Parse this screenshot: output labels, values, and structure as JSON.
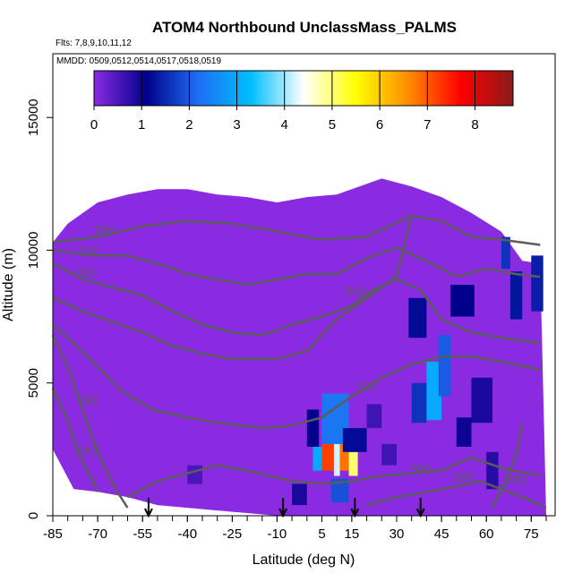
{
  "chart_data": {
    "type": "heatmap",
    "title": "ATOM4 Northbound UnclassMass_PALMS",
    "flights_text": "Flts: 7,8,9,10,11,12",
    "dates_text": "MMDD: 0509,0512,0514,0517,0518,0519",
    "xlabel": "Latitude (deg N)",
    "ylabel": "Altitude (m)",
    "xlim": [
      -85,
      83
    ],
    "ylim": [
      0,
      17400
    ],
    "x_ticks": [
      -85,
      -70,
      -55,
      -40,
      -25,
      -10,
      5,
      15,
      30,
      45,
      60,
      75
    ],
    "x_tick_labels": [
      "-85",
      "-70",
      "-55",
      "-40",
      "-25",
      "-10",
      "5",
      "15",
      "30",
      "45",
      "60",
      "75"
    ],
    "y_ticks": [
      0,
      5000,
      10000,
      15000
    ],
    "y_tick_labels": [
      "0",
      "5000",
      "10000",
      "15000"
    ],
    "colorbar": {
      "range": [
        0,
        8.8
      ],
      "ticks": [
        0,
        1,
        2,
        3,
        4,
        5,
        6,
        7,
        8
      ],
      "tick_labels": [
        "0",
        "1",
        "2",
        "3",
        "4",
        "5",
        "6",
        "7",
        "8"
      ],
      "colors": [
        "#8a2be2",
        "#00008b",
        "#1e6ff5",
        "#00bfff",
        "#ffffff",
        "#ffff00",
        "#ff8c00",
        "#ff0000",
        "#8b1a1a"
      ]
    },
    "background_color": "#8a2be2",
    "contour_color": "#5c5c5c",
    "coverage_profile": [
      [
        -85,
        10300
      ],
      [
        -80,
        11000
      ],
      [
        -70,
        11800
      ],
      [
        -60,
        12100
      ],
      [
        -50,
        12300
      ],
      [
        -40,
        12300
      ],
      [
        -30,
        12100
      ],
      [
        -20,
        12000
      ],
      [
        -10,
        11800
      ],
      [
        0,
        12000
      ],
      [
        10,
        12100
      ],
      [
        25,
        12700
      ],
      [
        35,
        12400
      ],
      [
        45,
        12000
      ],
      [
        55,
        11400
      ],
      [
        65,
        10700
      ],
      [
        72,
        9600
      ],
      [
        78,
        9500
      ]
    ],
    "coverage_bottom": [
      [
        -85,
        2500
      ],
      [
        -78,
        1000
      ],
      [
        -70,
        900
      ],
      [
        -60,
        700
      ],
      [
        -50,
        400
      ],
      [
        -40,
        300
      ],
      [
        -30,
        200
      ],
      [
        -20,
        100
      ],
      [
        -10,
        0
      ],
      [
        75,
        0
      ],
      [
        80,
        0
      ]
    ],
    "contours": [
      {
        "label": "350",
        "label_at": [
          -68,
          10600
        ],
        "points": [
          [
            -85,
            10300
          ],
          [
            -70,
            10500
          ],
          [
            -55,
            10900
          ],
          [
            -40,
            11100
          ],
          [
            -25,
            11000
          ],
          [
            -10,
            10700
          ],
          [
            5,
            10400
          ],
          [
            20,
            10500
          ],
          [
            35,
            11300
          ],
          [
            45,
            11100
          ],
          [
            55,
            10500
          ],
          [
            65,
            10400
          ],
          [
            78,
            10200
          ]
        ]
      },
      {
        "label": "330",
        "label_at": [
          -73,
          9800
        ],
        "points": [
          [
            -85,
            10000
          ],
          [
            -72,
            9800
          ],
          [
            -60,
            9800
          ],
          [
            -50,
            9500
          ],
          [
            -40,
            9100
          ],
          [
            -30,
            8900
          ],
          [
            -20,
            8700
          ],
          [
            -10,
            8900
          ],
          [
            0,
            9100
          ],
          [
            10,
            9100
          ],
          [
            20,
            9700
          ],
          [
            30,
            10100
          ],
          [
            40,
            9600
          ],
          [
            50,
            9000
          ],
          [
            60,
            9300
          ],
          [
            70,
            9100
          ],
          [
            78,
            9000
          ]
        ]
      },
      {
        "label": "320",
        "label_at": [
          -74,
          9000
        ],
        "points": [
          [
            -85,
            9500
          ],
          [
            -75,
            8900
          ],
          [
            -65,
            8600
          ],
          [
            -55,
            8300
          ],
          [
            -45,
            7700
          ],
          [
            -35,
            7200
          ],
          [
            -25,
            6900
          ],
          [
            -15,
            6800
          ],
          [
            -5,
            7200
          ],
          [
            5,
            7500
          ],
          [
            15,
            7900
          ],
          [
            22,
            8500
          ],
          [
            30,
            8900
          ],
          [
            38,
            8500
          ],
          [
            45,
            7400
          ],
          [
            55,
            6900
          ],
          [
            65,
            6700
          ],
          [
            78,
            6500
          ]
        ]
      },
      {
        "label": "340",
        "label_at": [
          16,
          8300
        ],
        "points": [
          [
            -85,
            8200
          ],
          [
            -75,
            7700
          ],
          [
            -65,
            7300
          ],
          [
            -55,
            6900
          ],
          [
            -45,
            6400
          ],
          [
            -35,
            6100
          ],
          [
            -25,
            5900
          ],
          [
            -10,
            5900
          ],
          [
            0,
            6200
          ],
          [
            10,
            7400
          ],
          [
            20,
            8200
          ],
          [
            30,
            9000
          ],
          [
            35,
            11300
          ]
        ]
      },
      {
        "label": "320",
        "label_at": [
          20,
          4700
        ],
        "points": [
          [
            -85,
            7200
          ],
          [
            -78,
            6500
          ],
          [
            -70,
            5600
          ],
          [
            -62,
            4700
          ],
          [
            -52,
            4000
          ],
          [
            -40,
            3700
          ],
          [
            -30,
            3500
          ],
          [
            -15,
            3300
          ],
          [
            -5,
            3400
          ],
          [
            5,
            3700
          ],
          [
            15,
            4500
          ],
          [
            25,
            5200
          ],
          [
            35,
            5700
          ],
          [
            45,
            6000
          ],
          [
            55,
            6000
          ],
          [
            65,
            5800
          ],
          [
            78,
            5500
          ]
        ]
      },
      {
        "label": "300",
        "label_at": [
          38,
          1600
        ],
        "points": [
          [
            -60,
            700
          ],
          [
            -50,
            1300
          ],
          [
            -40,
            1600
          ],
          [
            -30,
            1900
          ],
          [
            -20,
            1700
          ],
          [
            -5,
            1300
          ],
          [
            5,
            1200
          ],
          [
            15,
            1300
          ],
          [
            25,
            1500
          ],
          [
            35,
            1600
          ],
          [
            45,
            1700
          ],
          [
            55,
            2200
          ],
          [
            65,
            1800
          ],
          [
            78,
            1500
          ]
        ]
      },
      {
        "label": "290",
        "label_at": [
          52,
          1300
        ],
        "points": [
          [
            20,
            400
          ],
          [
            30,
            700
          ],
          [
            40,
            900
          ],
          [
            50,
            1100
          ],
          [
            58,
            1300
          ],
          [
            65,
            1000
          ],
          [
            72,
            700
          ],
          [
            80,
            300
          ]
        ]
      },
      {
        "label": "280",
        "label_at": [
          70,
          1200
        ],
        "points": [
          [
            62,
            300
          ],
          [
            66,
            1200
          ],
          [
            70,
            2300
          ],
          [
            72,
            3500
          ]
        ]
      },
      {
        "label": "280",
        "label_at": [
          -73,
          4200
        ],
        "points": [
          [
            -85,
            6800
          ],
          [
            -80,
            5600
          ],
          [
            -76,
            4300
          ],
          [
            -72,
            3000
          ],
          [
            -68,
            1900
          ],
          [
            -64,
            1000
          ],
          [
            -60,
            300
          ]
        ]
      },
      {
        "label": "280",
        "label_at": [
          -74,
          2300
        ],
        "points": [
          [
            -85,
            4800
          ],
          [
            -80,
            3600
          ],
          [
            -77,
            2500
          ],
          [
            -73,
            1600
          ],
          [
            -70,
            900
          ]
        ]
      }
    ],
    "hotspots": [
      {
        "lat": [
          5,
          9
        ],
        "alt": [
          1700,
          2700
        ],
        "value": 7.2
      },
      {
        "lat": [
          9,
          11
        ],
        "alt": [
          1500,
          4300
        ],
        "value": 4.2
      },
      {
        "lat": [
          11,
          14
        ],
        "alt": [
          1700,
          2700
        ],
        "value": 6.8
      },
      {
        "lat": [
          14,
          17
        ],
        "alt": [
          1500,
          2400
        ],
        "value": 5.0
      },
      {
        "lat": [
          2,
          5
        ],
        "alt": [
          1700,
          2600
        ],
        "value": 3.0
      },
      {
        "lat": [
          10,
          12
        ],
        "alt": [
          2700,
          3400
        ],
        "value": 3.5
      },
      {
        "lat": [
          8,
          14
        ],
        "alt": [
          500,
          1400
        ],
        "value": 1.9
      },
      {
        "lat": [
          5,
          14
        ],
        "alt": [
          2700,
          4600
        ],
        "value": 2.3
      },
      {
        "lat": [
          12,
          20
        ],
        "alt": [
          2400,
          3300
        ],
        "value": 1.2
      },
      {
        "lat": [
          0,
          4
        ],
        "alt": [
          2600,
          4000
        ],
        "value": 1.1
      },
      {
        "lat": [
          -5,
          0
        ],
        "alt": [
          400,
          1200
        ],
        "value": 0.9
      },
      {
        "lat": [
          35,
          40
        ],
        "alt": [
          3500,
          5000
        ],
        "value": 1.6
      },
      {
        "lat": [
          40,
          45
        ],
        "alt": [
          3600,
          5800
        ],
        "value": 3.0
      },
      {
        "lat": [
          44,
          48
        ],
        "alt": [
          4500,
          6800
        ],
        "value": 2.0
      },
      {
        "lat": [
          50,
          55
        ],
        "alt": [
          2600,
          3700
        ],
        "value": 1.0
      },
      {
        "lat": [
          34,
          40
        ],
        "alt": [
          6700,
          8200
        ],
        "value": 1.2
      },
      {
        "lat": [
          48,
          56
        ],
        "alt": [
          7500,
          8700
        ],
        "value": 1.1
      },
      {
        "lat": [
          55,
          62
        ],
        "alt": [
          3500,
          5200
        ],
        "value": 0.9
      },
      {
        "lat": [
          68,
          72
        ],
        "alt": [
          7400,
          9200
        ],
        "value": 1.3
      },
      {
        "lat": [
          75,
          79
        ],
        "alt": [
          7700,
          9800
        ],
        "value": 1.4
      },
      {
        "lat": [
          65,
          68
        ],
        "alt": [
          9300,
          10500
        ],
        "value": 1.6
      },
      {
        "lat": [
          60,
          64
        ],
        "alt": [
          1000,
          2400
        ],
        "value": 0.8
      },
      {
        "lat": [
          25,
          30
        ],
        "alt": [
          1900,
          2700
        ],
        "value": 0.6
      },
      {
        "lat": [
          20,
          25
        ],
        "alt": [
          3300,
          4200
        ],
        "value": 0.6
      },
      {
        "lat": [
          -40,
          -35
        ],
        "alt": [
          1200,
          1900
        ],
        "value": 0.5
      }
    ],
    "arrows_lat": [
      -53,
      -8,
      16,
      38
    ]
  }
}
